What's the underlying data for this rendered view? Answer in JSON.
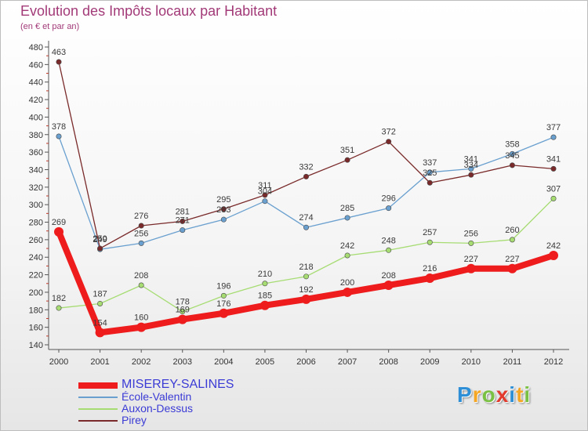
{
  "title": "Evolution des Impôts locaux par Habitant",
  "subtitle": "(en € et par an)",
  "logo": {
    "letters": [
      "P",
      "r",
      "o",
      "x",
      "i",
      "t",
      "i"
    ],
    "colors": [
      "#2e8fd6",
      "#f5a623",
      "#7ac143",
      "#e23b2e",
      "#2e8fd6",
      "#f5a623",
      "#7ac143"
    ]
  },
  "chart_data": {
    "type": "line",
    "title": "Evolution des Impôts locaux par Habitant",
    "subtitle": "(en € et par an)",
    "x": [
      "2000",
      "2001",
      "2002",
      "2003",
      "2004",
      "2005",
      "2006",
      "2007",
      "2008",
      "2009",
      "2010",
      "2011",
      "2012"
    ],
    "ylim": [
      140,
      480
    ],
    "yticks": [
      "140",
      "160",
      "180",
      "200",
      "220",
      "240",
      "260",
      "280",
      "300",
      "320",
      "340",
      "360",
      "380",
      "400",
      "420",
      "440",
      "460",
      "480"
    ],
    "grid": false,
    "legend_position": "bottom-left",
    "series": [
      {
        "name": "MISEREY-SALINES",
        "color": "#ee1c1c",
        "bold": true,
        "values": [
          269,
          154,
          160,
          169,
          176,
          185,
          192,
          200,
          208,
          216,
          227,
          227,
          242
        ],
        "labels": [
          "269",
          "154",
          "160",
          "169",
          "176",
          "185",
          "192",
          "200",
          "208",
          "216",
          "227",
          "227",
          "242"
        ]
      },
      {
        "name": "École-Valentin",
        "color": "#6aa0cf",
        "bold": false,
        "values": [
          378,
          249,
          256,
          271,
          283,
          304,
          274,
          285,
          296,
          337,
          341,
          358,
          377
        ],
        "labels": [
          "378",
          "249",
          "256",
          "271",
          "283",
          "304",
          "274",
          "285",
          "296",
          "337",
          "341",
          "358",
          "377"
        ]
      },
      {
        "name": "Auxon-Dessus",
        "color": "#a6dc72",
        "bold": false,
        "values": [
          182,
          187,
          208,
          178,
          196,
          210,
          218,
          242,
          248,
          257,
          256,
          260,
          307
        ],
        "labels": [
          "182",
          "187",
          "208",
          "178",
          "196",
          "210",
          "218",
          "242",
          "248",
          "257",
          "256",
          "260",
          "307"
        ]
      },
      {
        "name": "Pirey",
        "color": "#7a2a2a",
        "bold": false,
        "values": [
          463,
          250,
          276,
          281,
          295,
          311,
          332,
          351,
          372,
          325,
          334,
          345,
          341
        ],
        "labels": [
          "463",
          "250",
          "276",
          "281",
          "295",
          "311",
          "332",
          "351",
          "372",
          "325",
          "334",
          "345",
          "341"
        ]
      }
    ]
  }
}
